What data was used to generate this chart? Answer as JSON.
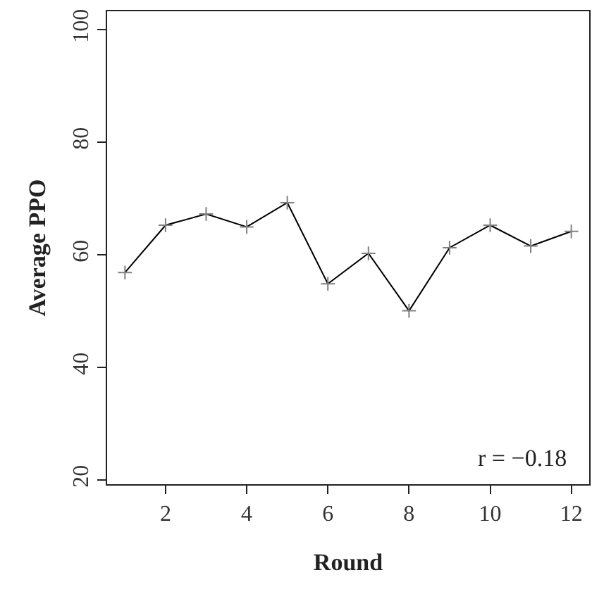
{
  "chart_data": {
    "type": "line",
    "xlabel": "Round",
    "ylabel": "Average PPO",
    "x": [
      1,
      2,
      3,
      4,
      5,
      6,
      7,
      8,
      9,
      10,
      11,
      12
    ],
    "series": [
      {
        "color": "#000000",
        "values": [
          56.8,
          65.2,
          67.2,
          64.9,
          69.2,
          54.8,
          60.2,
          50,
          61.2,
          65.2,
          61.5,
          64.1
        ]
      }
    ],
    "xlim": [
      0.56,
      12.44
    ],
    "xticks": [
      2,
      4,
      6,
      8,
      10,
      12
    ],
    "ylim": [
      19.2,
      103.2
    ],
    "yticks": [
      20,
      40,
      60,
      80,
      100
    ],
    "marker": "cross",
    "grid": false,
    "annotations": [
      "r = −0.18"
    ]
  }
}
